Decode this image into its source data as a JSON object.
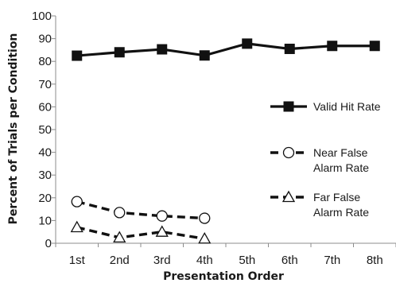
{
  "chart_data": {
    "type": "line",
    "xlabel": "Presentation Order",
    "ylabel": "Percent of Trials per Condition",
    "categories": [
      "1st",
      "2nd",
      "3rd",
      "4th",
      "5th",
      "6th",
      "7th",
      "8th"
    ],
    "ylim": [
      0,
      100
    ],
    "yticks": [
      0,
      10,
      20,
      30,
      40,
      50,
      60,
      70,
      80,
      90,
      100
    ],
    "grid": false,
    "legend_position": "right",
    "series": [
      {
        "name": "Valid Hit Rate",
        "legend_lines": [
          "Valid Hit Rate"
        ],
        "line_style": "solid",
        "marker": "square",
        "values": [
          82.5,
          84,
          85.3,
          82.6,
          87.8,
          85.5,
          86.8,
          86.8
        ]
      },
      {
        "name": "Near False Alarm Rate",
        "legend_lines": [
          "Near False",
          "Alarm Rate"
        ],
        "line_style": "dashed",
        "marker": "circle",
        "values": [
          18.3,
          13.5,
          12,
          11,
          null,
          null,
          null,
          null
        ]
      },
      {
        "name": "Far False Alarm Rate",
        "legend_lines": [
          "Far False",
          "Alarm Rate"
        ],
        "line_style": "dashed",
        "marker": "triangle",
        "values": [
          7,
          2.5,
          5,
          2,
          null,
          null,
          null,
          null
        ]
      }
    ]
  }
}
